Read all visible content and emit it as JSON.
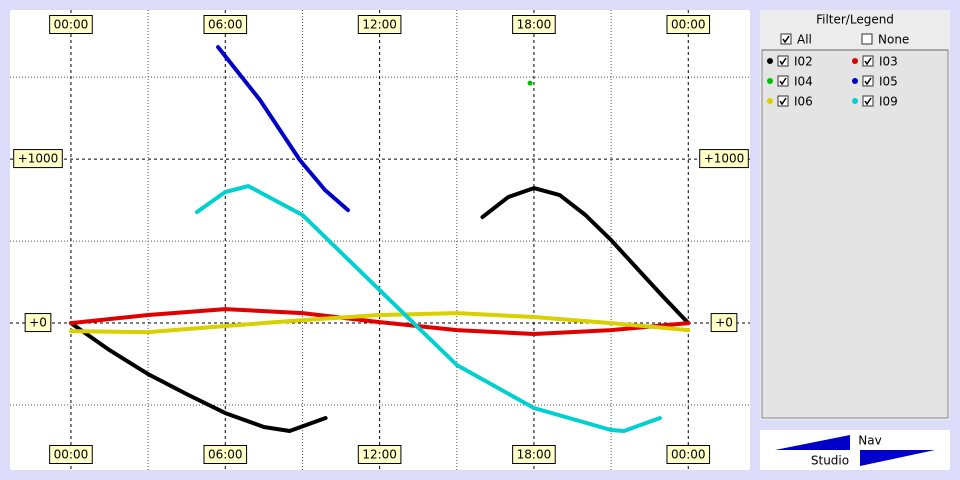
{
  "chart_data": {
    "type": "line",
    "xlim": [
      -2.37,
      26.4
    ],
    "ylim": [
      -896,
      1909
    ],
    "xticks": [
      {
        "value": 0,
        "label": "00:00"
      },
      {
        "value": 6,
        "label": "06:00"
      },
      {
        "value": 12,
        "label": "12:00"
      },
      {
        "value": 18,
        "label": "18:00"
      },
      {
        "value": 24,
        "label": "00:00"
      }
    ],
    "yticks": [
      {
        "value": 0,
        "label": "+0"
      },
      {
        "value": 1000,
        "label": "+1000"
      }
    ],
    "minor_xticks": [
      3,
      9,
      15,
      21
    ],
    "minor_yticks": [
      -500,
      500,
      1500
    ],
    "grid": true,
    "series": [
      {
        "name": "I02",
        "color": "#000000",
        "checked": true,
        "x": [
          0,
          1.5,
          3,
          4.5,
          6,
          7.5,
          8.5,
          9.9,
          13,
          16,
          17,
          18,
          19,
          20,
          21,
          22,
          23,
          24
        ],
        "values": [
          0,
          -165,
          -311,
          -433,
          -549,
          -634,
          -658,
          -579,
          null,
          646,
          768,
          823,
          780,
          659,
          506,
          335,
          165,
          0
        ]
      },
      {
        "name": "I03",
        "color": "#e00000",
        "checked": true,
        "x": [
          0,
          3,
          6,
          9,
          12,
          15,
          18,
          21,
          24
        ],
        "values": [
          0,
          49,
          85,
          61,
          6,
          -43,
          -67,
          -43,
          0
        ]
      },
      {
        "name": "I04",
        "color": "#00c000",
        "checked": true,
        "x": [
          17.85
        ],
        "values": [
          1463
        ]
      },
      {
        "name": "I05",
        "color": "#0000c8",
        "checked": true,
        "x": [
          5.72,
          7.35,
          8.9,
          9.88,
          10.77
        ],
        "values": [
          1683,
          1360,
          994,
          811,
          689
        ]
      },
      {
        "name": "I06",
        "color": "#d8d000",
        "checked": true,
        "x": [
          0,
          3,
          6,
          9,
          12,
          15,
          18,
          21,
          24
        ],
        "values": [
          -49,
          -55,
          -18,
          18,
          49,
          61,
          37,
          0,
          -43
        ]
      },
      {
        "name": "I09",
        "color": "#00d0d0",
        "checked": true,
        "x": [
          4.9,
          6,
          6.9,
          9,
          12,
          15,
          18,
          21,
          21.5,
          22.9
        ],
        "values": [
          677,
          799,
          835,
          659,
          201,
          -256,
          -518,
          -652,
          -658,
          -579
        ]
      }
    ]
  },
  "filter": {
    "title": "Filter/Legend",
    "all": "All",
    "all_checked": true,
    "none": "None",
    "none_checked": false
  },
  "logo": {
    "top": "Nav",
    "bottom": "Studio"
  }
}
